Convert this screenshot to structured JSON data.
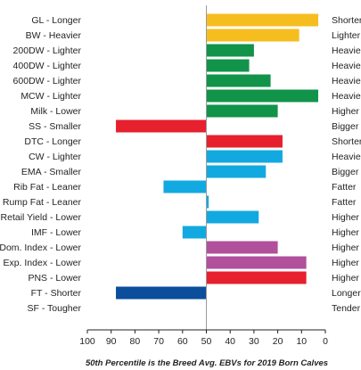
{
  "chart_data": {
    "type": "bar",
    "orientation": "horizontal",
    "baseline": 50,
    "xlim": [
      100,
      0
    ],
    "xticks": [
      "100",
      "90",
      "80",
      "70",
      "60",
      "50",
      "40",
      "30",
      "20",
      "10",
      "0"
    ],
    "caption": "50th Percentile is the Breed Avg. EBVs for 2019 Born Calves",
    "categories": [
      {
        "left": "GL - Longer",
        "right": "Shorter",
        "value": 3,
        "color": "#f6bd1e"
      },
      {
        "left": "BW - Heavier",
        "right": "Lighter",
        "value": 11,
        "color": "#f6bd1e"
      },
      {
        "left": "200DW - Lighter",
        "right": "Heavier",
        "value": 30,
        "color": "#11934a"
      },
      {
        "left": "400DW - Lighter",
        "right": "Heavier",
        "value": 32,
        "color": "#11934a"
      },
      {
        "left": "600DW - Lighter",
        "right": "Heavier",
        "value": 23,
        "color": "#11934a"
      },
      {
        "left": "MCW - Lighter",
        "right": "Heavier",
        "value": 3,
        "color": "#11934a"
      },
      {
        "left": "Milk - Lower",
        "right": "Higher",
        "value": 20,
        "color": "#11934a"
      },
      {
        "left": "SS - Smaller",
        "right": "Bigger",
        "value": 88,
        "color": "#e6202c"
      },
      {
        "left": "DTC - Longer",
        "right": "Shorter",
        "value": 18,
        "color": "#e6202c"
      },
      {
        "left": "CW - Lighter",
        "right": "Heavier",
        "value": 18,
        "color": "#12a9e1"
      },
      {
        "left": "EMA - Smaller",
        "right": "Bigger",
        "value": 25,
        "color": "#12a9e1"
      },
      {
        "left": "Rib Fat - Leaner",
        "right": "Fatter",
        "value": 68,
        "color": "#12a9e1"
      },
      {
        "left": "Rump Fat - Leaner",
        "right": "Fatter",
        "value": 49,
        "color": "#12a9e1"
      },
      {
        "left": "Retail Yield - Lower",
        "right": "Higher",
        "value": 28,
        "color": "#12a9e1"
      },
      {
        "left": "IMF - Lower",
        "right": "Higher",
        "value": 60,
        "color": "#12a9e1"
      },
      {
        "left": "Dom. Index - Lower",
        "right": "Higher",
        "value": 20,
        "color": "#b1509b"
      },
      {
        "left": "Exp. Index - Lower",
        "right": "Higher",
        "value": 8,
        "color": "#b1509b"
      },
      {
        "left": "PNS - Lower",
        "right": "Higher",
        "value": 8,
        "color": "#e6202c"
      },
      {
        "left": "FT - Shorter",
        "right": "Longer",
        "value": 88,
        "color": "#0b4e9b"
      },
      {
        "left": "SF - Tougher",
        "right": "Tender",
        "value": null,
        "color": "#9a9a9a"
      }
    ]
  }
}
